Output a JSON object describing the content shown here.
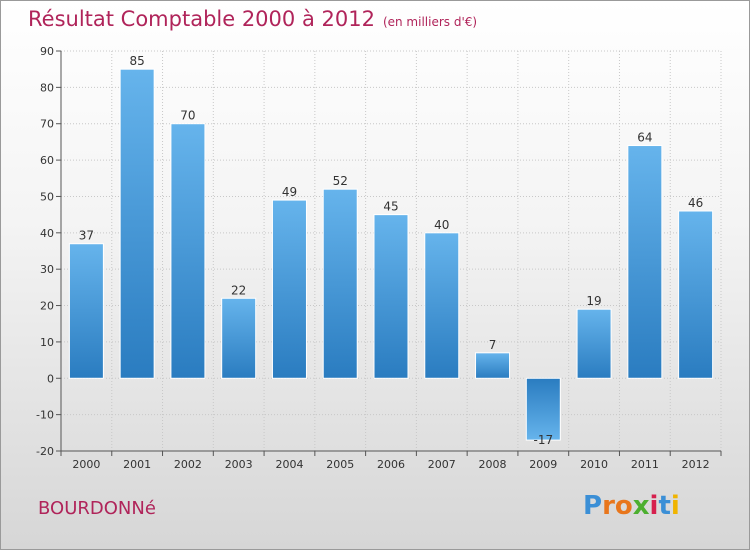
{
  "page": {
    "title": "Résultat Comptable 2000 à 2012",
    "unit_note": "(en milliers d'€)",
    "commune": "BOURDONNé",
    "logo_letters": [
      "P",
      "r",
      "o",
      "x",
      "i",
      "t",
      "i"
    ],
    "logo_colors": [
      "#3b8fd6",
      "#e8761c",
      "#e8761c",
      "#4caf2f",
      "#d6204e",
      "#3b8fd6",
      "#f0b400"
    ]
  },
  "chart_data": {
    "type": "bar",
    "categories": [
      "2000",
      "2001",
      "2002",
      "2003",
      "2004",
      "2005",
      "2006",
      "2007",
      "2008",
      "2009",
      "2010",
      "2011",
      "2012"
    ],
    "values": [
      37,
      85,
      70,
      22,
      49,
      52,
      45,
      40,
      7,
      -17,
      19,
      64,
      46
    ],
    "ylim": [
      -20,
      90
    ],
    "yticks": [
      -20,
      -10,
      0,
      10,
      20,
      30,
      40,
      50,
      60,
      70,
      80,
      90
    ],
    "grid": true,
    "colors": {
      "bar_light": "#66b4ec",
      "bar_dark": "#2a7cc0",
      "grid": "#c8c8c8",
      "axis": "#555555"
    }
  }
}
